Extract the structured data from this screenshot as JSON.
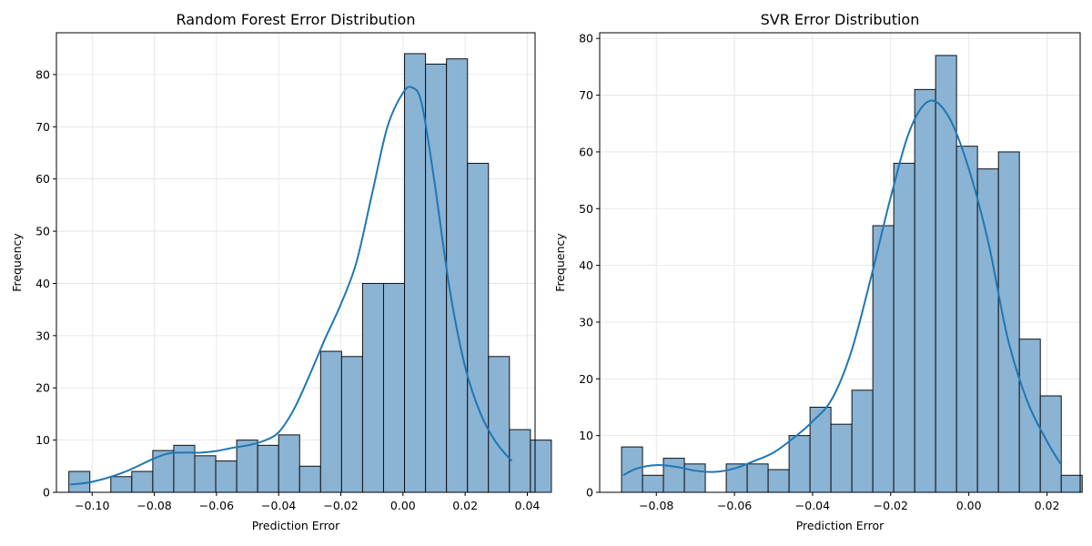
{
  "chart_data": [
    {
      "type": "histogram",
      "title": "Random Forest Error Distribution",
      "xlabel": "Prediction Error",
      "ylabel": "Frequency",
      "xlim": [
        -0.1115,
        0.0425
      ],
      "ylim": [
        0,
        88
      ],
      "xticks": [
        -0.1,
        -0.08,
        -0.06,
        -0.04,
        -0.02,
        0.0,
        0.02,
        0.04
      ],
      "xtick_labels": [
        "−0.10",
        "−0.08",
        "−0.06",
        "−0.04",
        "−0.02",
        "0.00",
        "0.02",
        "0.04"
      ],
      "yticks": [
        0,
        10,
        20,
        30,
        40,
        50,
        60,
        70,
        80
      ],
      "yticks_labels": [
        "0",
        "10",
        "20",
        "30",
        "40",
        "50",
        "60",
        "70",
        "80"
      ],
      "grid": true,
      "bin_start": -0.1075,
      "bin_width": 0.00675,
      "counts": [
        4,
        0,
        3,
        4,
        8,
        9,
        7,
        6,
        10,
        9,
        11,
        5,
        27,
        26,
        40,
        40,
        84,
        82,
        83,
        63,
        26,
        12,
        10
      ],
      "kde": {
        "x": [
          -0.107,
          -0.1,
          -0.09,
          -0.08,
          -0.075,
          -0.07,
          -0.065,
          -0.06,
          -0.055,
          -0.05,
          -0.045,
          -0.04,
          -0.035,
          -0.03,
          -0.025,
          -0.02,
          -0.015,
          -0.01,
          -0.005,
          0.0,
          0.003,
          0.006,
          0.01,
          0.015,
          0.02,
          0.025,
          0.03,
          0.035
        ],
        "y": [
          1.5,
          2.0,
          3.8,
          6.5,
          7.5,
          7.6,
          7.6,
          7.9,
          8.5,
          9.0,
          9.8,
          11.5,
          16.0,
          22.5,
          29.5,
          36.0,
          44.0,
          57.0,
          70.0,
          76.5,
          77.5,
          74.5,
          60.0,
          39.0,
          24.0,
          15.0,
          9.5,
          6.0
        ]
      },
      "bar_color": "#8ab3d4",
      "line_color": "#1f77b4"
    },
    {
      "type": "histogram",
      "title": "SVR Error Distribution",
      "xlabel": "Prediction Error",
      "ylabel": "Frequency",
      "xlim": [
        -0.0945,
        0.0285
      ],
      "ylim": [
        0,
        81
      ],
      "xticks": [
        -0.08,
        -0.06,
        -0.04,
        -0.02,
        0.0,
        0.02
      ],
      "xtick_labels": [
        "−0.08",
        "−0.06",
        "−0.04",
        "−0.02",
        "0.00",
        "0.02"
      ],
      "yticks": [
        0,
        10,
        20,
        30,
        40,
        50,
        60,
        70,
        80
      ],
      "yticks_labels": [
        "0",
        "10",
        "20",
        "30",
        "40",
        "50",
        "60",
        "70",
        "80"
      ],
      "grid": true,
      "bin_start": -0.0889,
      "bin_width": 0.00536,
      "counts": [
        8,
        3,
        6,
        5,
        0,
        5,
        5,
        4,
        10,
        15,
        12,
        18,
        47,
        58,
        71,
        77,
        61,
        57,
        60,
        27,
        17,
        3
      ],
      "kde": {
        "x": [
          -0.0885,
          -0.085,
          -0.08,
          -0.075,
          -0.07,
          -0.065,
          -0.06,
          -0.055,
          -0.05,
          -0.045,
          -0.04,
          -0.035,
          -0.03,
          -0.025,
          -0.02,
          -0.015,
          -0.01,
          -0.005,
          0.0,
          0.005,
          0.01,
          0.015,
          0.02,
          0.0235
        ],
        "y": [
          3.0,
          4.2,
          4.8,
          4.5,
          3.8,
          3.6,
          4.2,
          5.5,
          7.0,
          9.5,
          12.5,
          16.5,
          25.0,
          38.0,
          52.0,
          64.0,
          69.0,
          66.0,
          57.0,
          44.0,
          27.0,
          16.0,
          9.0,
          5.0
        ]
      },
      "bar_color": "#8ab3d4",
      "line_color": "#1f77b4"
    }
  ]
}
